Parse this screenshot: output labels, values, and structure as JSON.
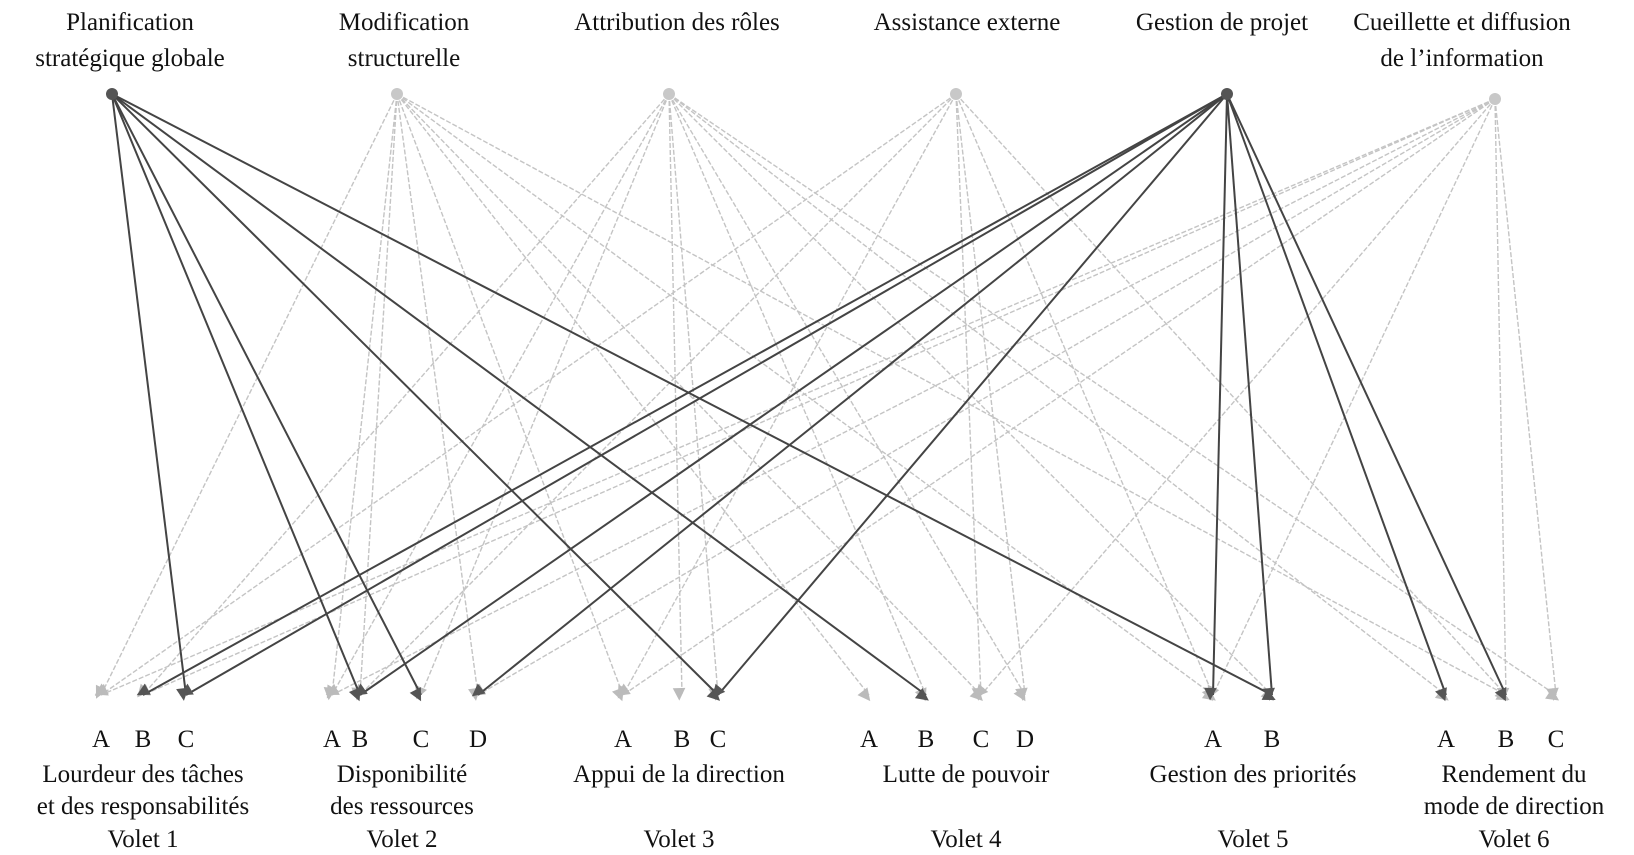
{
  "sources": [
    {
      "label": [
        "Planification",
        "stratégique globale"
      ]
    },
    {
      "label": [
        "Modification",
        "structurelle"
      ]
    },
    {
      "label": [
        "Attribution des rôles"
      ]
    },
    {
      "label": [
        "Assistance externe"
      ]
    },
    {
      "label": [
        "Gestion de projet"
      ]
    },
    {
      "label": [
        "Cueillette et diffusion",
        "de l’information"
      ]
    }
  ],
  "groups": [
    {
      "options": [
        "A",
        "B",
        "C"
      ],
      "label": [
        "Lourdeur des tâches",
        "et des responsabilités"
      ],
      "volet": "Volet 1"
    },
    {
      "options": [
        "A",
        "B",
        "C",
        "D"
      ],
      "label": [
        "Disponibilité",
        "des ressources"
      ],
      "volet": "Volet 2"
    },
    {
      "options": [
        "A",
        "B",
        "C"
      ],
      "label": [
        "Appui de la direction"
      ],
      "volet": "Volet 3"
    },
    {
      "options": [
        "A",
        "B",
        "C",
        "D"
      ],
      "label": [
        "Lutte de pouvoir"
      ],
      "volet": "Volet 4"
    },
    {
      "options": [
        "A",
        "B"
      ],
      "label": [
        "Gestion des priorités"
      ],
      "volet": "Volet 5"
    },
    {
      "options": [
        "A",
        "B",
        "C"
      ],
      "label": [
        "Rendement du",
        "mode de direction"
      ],
      "volet": "Volet 6"
    }
  ]
}
